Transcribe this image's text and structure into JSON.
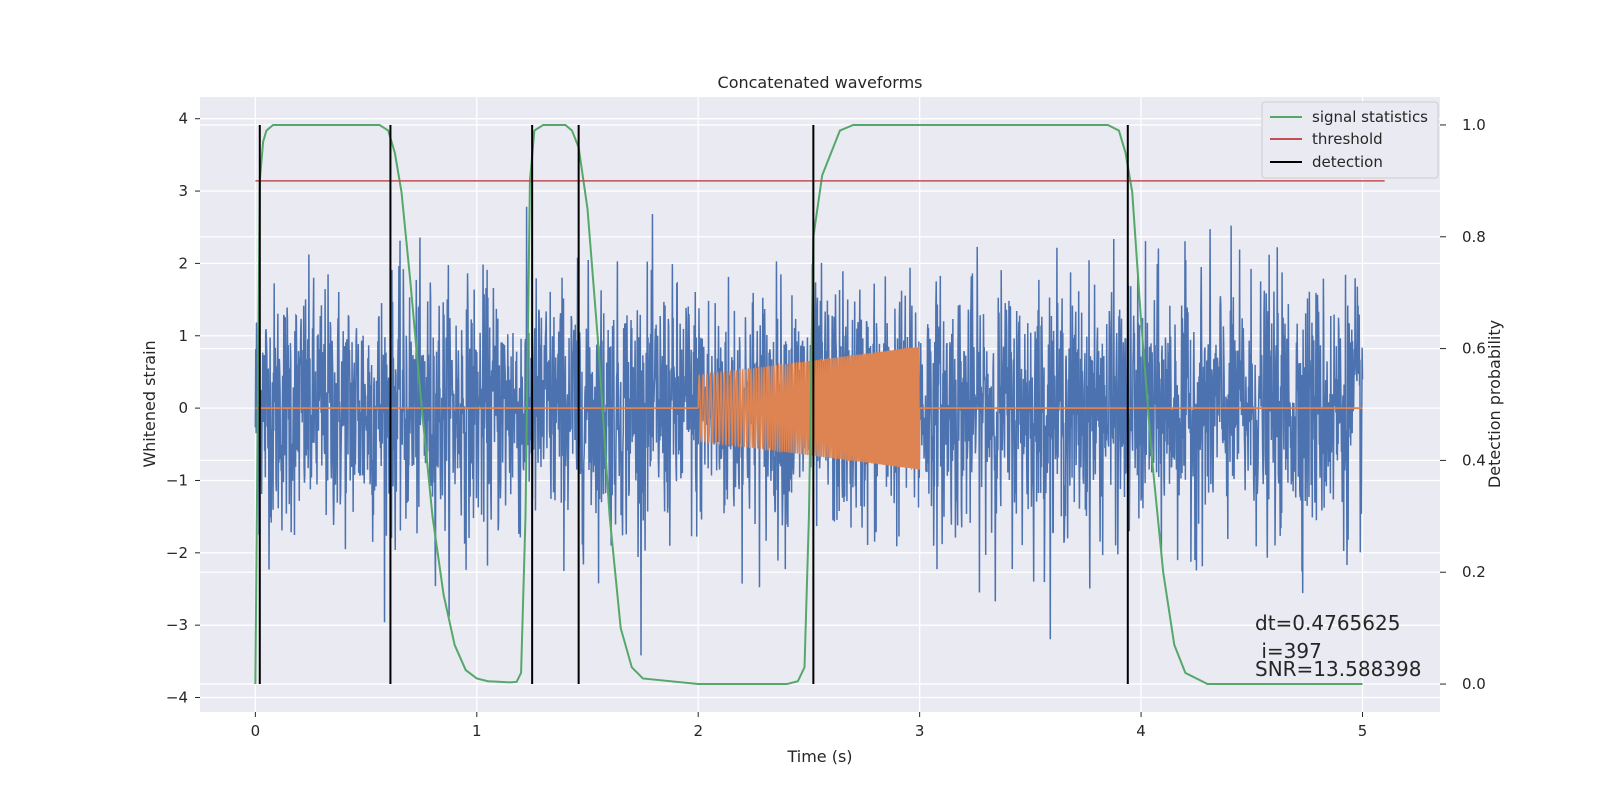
{
  "chart_data": {
    "type": "line",
    "title": "Concatenated waveforms",
    "xlabel": "Time (s)",
    "ylabel": "Whitened strain",
    "y2label": "Detection probability",
    "xlim": [
      -0.25,
      5.35
    ],
    "ylim": [
      -4.2,
      4.3
    ],
    "y2lim": [
      -0.05,
      1.05
    ],
    "xticks": [
      0,
      1,
      2,
      3,
      4,
      5
    ],
    "yticks": [
      -4,
      -3,
      -2,
      -1,
      0,
      1,
      2,
      3,
      4
    ],
    "y2ticks": [
      0.0,
      0.2,
      0.4,
      0.6,
      0.8,
      1.0
    ],
    "grid": true,
    "legend_position": "top-right",
    "noise": {
      "x_range": [
        0,
        5
      ],
      "amplitude_sigma": 0.85,
      "color": "#4c72b0"
    },
    "chirp_segment": {
      "x_range": [
        2,
        3
      ],
      "amplitude_start": 0.45,
      "amplitude_end": 0.85,
      "color": "#dd8452"
    },
    "series": [
      {
        "name": "signal statistics",
        "axis": "right",
        "color": "#55a868",
        "x": [
          0.0,
          0.01,
          0.02,
          0.035,
          0.05,
          0.08,
          0.15,
          0.5,
          0.56,
          0.6,
          0.63,
          0.66,
          0.7,
          0.75,
          0.8,
          0.85,
          0.9,
          0.95,
          1.0,
          1.05,
          1.1,
          1.15,
          1.18,
          1.2,
          1.22,
          1.24,
          1.26,
          1.3,
          1.4,
          1.43,
          1.46,
          1.5,
          1.55,
          1.6,
          1.65,
          1.7,
          1.75,
          2.0,
          2.4,
          2.45,
          2.48,
          2.5,
          2.52,
          2.56,
          2.6,
          2.64,
          2.7,
          3.0,
          3.5,
          3.85,
          3.9,
          3.93,
          3.96,
          4.0,
          4.05,
          4.1,
          4.15,
          4.2,
          4.3,
          5.0
        ],
        "y": [
          0.0,
          0.45,
          0.9,
          0.97,
          0.99,
          1.0,
          1.0,
          1.0,
          1.0,
          0.99,
          0.95,
          0.88,
          0.72,
          0.5,
          0.3,
          0.16,
          0.07,
          0.025,
          0.01,
          0.005,
          0.004,
          0.003,
          0.004,
          0.02,
          0.3,
          0.9,
          0.99,
          1.0,
          1.0,
          0.99,
          0.96,
          0.85,
          0.6,
          0.3,
          0.1,
          0.03,
          0.01,
          0.0,
          0.0,
          0.005,
          0.03,
          0.3,
          0.8,
          0.91,
          0.95,
          0.99,
          1.0,
          1.0,
          1.0,
          1.0,
          0.99,
          0.95,
          0.88,
          0.65,
          0.4,
          0.2,
          0.07,
          0.02,
          0.0,
          0.0
        ]
      },
      {
        "name": "threshold",
        "axis": "right",
        "color": "#c44e52",
        "x": [
          0.0,
          5.1
        ],
        "y": [
          0.9,
          0.9
        ]
      },
      {
        "name": "detection",
        "axis": "right",
        "color": "#000000",
        "verticals": [
          0.02,
          0.61,
          1.25,
          1.46,
          2.52,
          3.94
        ],
        "y_span": [
          0.0,
          1.0
        ]
      }
    ],
    "annotations": [
      {
        "text": "dt=0.4765625",
        "x": 4.5,
        "y": -3.0
      },
      {
        "text": " i=397",
        "x": 4.5,
        "y": -3.35
      },
      {
        "text": "SNR=13.588398",
        "x": 4.5,
        "y": -3.57
      }
    ]
  }
}
